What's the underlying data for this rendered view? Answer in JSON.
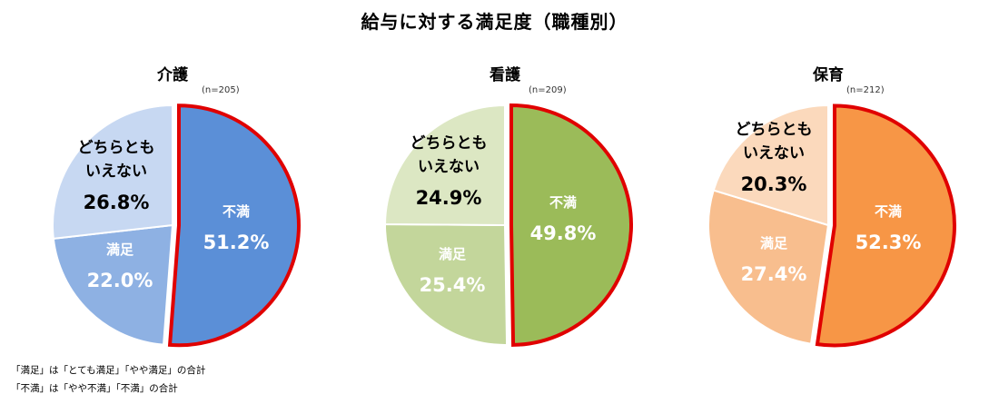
{
  "title": "給与に対する満足度（職種別）",
  "chart_data": [
    {
      "type": "pie",
      "title": "介護",
      "n": "(n=205)",
      "slices": [
        {
          "label": "不満",
          "value": 51.2,
          "display": "51.2%",
          "color": "#5B8FD7",
          "highlight": true
        },
        {
          "label": "満足",
          "value": 22.0,
          "display": "22.0%",
          "color": "#8EB1E3",
          "highlight": false
        },
        {
          "label": "どちらとも\nいえない",
          "value": 26.8,
          "display": "26.8%",
          "color": "#C7D8F2",
          "highlight": false
        }
      ]
    },
    {
      "type": "pie",
      "title": "看護",
      "n": "(n=209)",
      "slices": [
        {
          "label": "不満",
          "value": 49.8,
          "display": "49.8%",
          "color": "#9BBB59",
          "highlight": true
        },
        {
          "label": "満足",
          "value": 25.4,
          "display": "25.4%",
          "color": "#C3D69B",
          "highlight": false
        },
        {
          "label": "どちらとも\nいえない",
          "value": 24.9,
          "display": "24.9%",
          "color": "#DCE7C3",
          "highlight": false
        }
      ]
    },
    {
      "type": "pie",
      "title": "保育",
      "n": "(n=212)",
      "slices": [
        {
          "label": "不満",
          "value": 52.3,
          "display": "52.3%",
          "color": "#F79646",
          "highlight": true
        },
        {
          "label": "満足",
          "value": 27.4,
          "display": "27.4%",
          "color": "#F8BE8E",
          "highlight": false
        },
        {
          "label": "どちらとも\nいえない",
          "value": 20.3,
          "display": "20.3%",
          "color": "#FBD9BC",
          "highlight": false
        }
      ]
    }
  ],
  "notes": [
    "「満足」は「とても満足」「やや満足」の合計",
    "「不満」は「やや不満」「不満」の合計"
  ],
  "highlight_color": "#E00000"
}
